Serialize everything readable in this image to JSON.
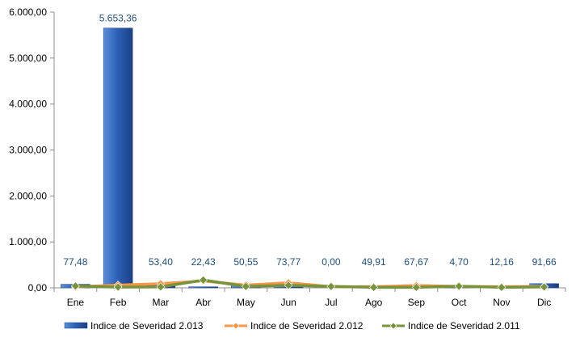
{
  "chart_data": {
    "type": "bar",
    "categories": [
      "Ene",
      "Feb",
      "Mar",
      "Abr",
      "May",
      "Jun",
      "Jul",
      "Ago",
      "Sep",
      "Oct",
      "Nov",
      "Dic"
    ],
    "series": [
      {
        "name": "Indice de Severidad 2.013",
        "type": "bar",
        "color": "#2E62B8",
        "values": [
          77.48,
          5653.36,
          53.4,
          22.43,
          50.55,
          73.77,
          0.0,
          49.91,
          67.67,
          4.7,
          12.16,
          91.66
        ],
        "labels": [
          "77,48",
          "5.653,36",
          "53,40",
          "22,43",
          "50,55",
          "73,77",
          "0,00",
          "49,91",
          "67,67",
          "4,70",
          "12,16",
          "91,66"
        ]
      },
      {
        "name": "Indice de Severidad 2.012",
        "type": "line",
        "color": "#F79646",
        "values": [
          20,
          60,
          90,
          150,
          60,
          110,
          25,
          25,
          50,
          30,
          25,
          30
        ]
      },
      {
        "name": "Indice de Severidad 2.011",
        "type": "line",
        "color": "#77933C",
        "values": [
          40,
          15,
          20,
          170,
          30,
          55,
          30,
          10,
          10,
          35,
          10,
          20
        ]
      }
    ],
    "yaxis": {
      "min": 0,
      "max": 6000,
      "ticks": [
        0,
        1000,
        2000,
        3000,
        4000,
        5000,
        6000
      ],
      "tick_labels": [
        "0,00",
        "1.000,00",
        "2.000,00",
        "3.000,00",
        "4.000,00",
        "5.000,00",
        "6.000,00"
      ]
    },
    "grid": false,
    "legend": "bottom"
  }
}
